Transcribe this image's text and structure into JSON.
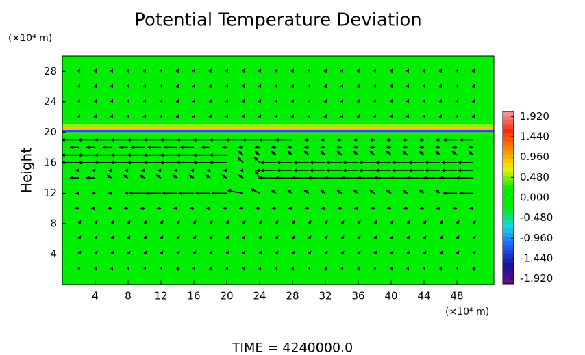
{
  "chart_data": {
    "type": "contour-quiver",
    "title": "Potential Temperature Deviation",
    "ylabel": "Height",
    "x_unit": "(×10⁴ m)",
    "y_unit": "(×10⁴ m)",
    "footer": "TIME = 4240000.0",
    "xlim": [
      0,
      52.5
    ],
    "ylim": [
      0,
      30
    ],
    "xticks": [
      4,
      8,
      12,
      16,
      20,
      24,
      28,
      32,
      36,
      40,
      44,
      48
    ],
    "yticks": [
      4,
      8,
      12,
      16,
      20,
      24,
      28
    ],
    "clim": [
      -2.04,
      2.04
    ],
    "colormap": [
      "#6a0d8a",
      "#1a0f9c",
      "#1f5cff",
      "#18d6e8",
      "#00ee00",
      "#00ee00",
      "#f4f000",
      "#ff8a00",
      "#ff2a10",
      "#f2a0a8"
    ],
    "cticks": [
      {
        "value": 1.92,
        "label": "1.920"
      },
      {
        "value": 1.44,
        "label": "1.440"
      },
      {
        "value": 0.96,
        "label": "0.960"
      },
      {
        "value": 0.48,
        "label": "0.480"
      },
      {
        "value": 0,
        "label": "0.000"
      },
      {
        "value": -0.48,
        "label": "-0.480"
      },
      {
        "value": -0.96,
        "label": "-0.960"
      },
      {
        "value": -1.44,
        "label": "-1.440"
      },
      {
        "value": -1.92,
        "label": "-1.920"
      }
    ],
    "field": {
      "y": [
        0,
        19.6,
        20.0,
        20.3,
        20.6,
        21.0,
        21.4
      ],
      "values": [
        0,
        0.3,
        -1.2,
        0.9,
        0.5,
        0.2,
        0
      ]
    },
    "vectors": {
      "x": [
        2,
        4,
        6,
        8,
        10,
        12,
        14,
        16,
        18,
        20,
        22,
        24,
        26,
        28,
        30,
        32,
        34,
        36,
        38,
        40,
        42,
        44,
        46,
        48,
        50
      ],
      "y": [
        2,
        4,
        6,
        8,
        10,
        12,
        14,
        15,
        16,
        17,
        18,
        19,
        22,
        24,
        26,
        28
      ],
      "u": [
        [
          0.1,
          0.1,
          0.1,
          0.1,
          0.1,
          0.1,
          0.1,
          0.1,
          0.1,
          0.1,
          0.1,
          0.1,
          0.1,
          0.1,
          0.1,
          0.1,
          0.1,
          0.1,
          0.1,
          0.1,
          0.1,
          0.1,
          0.1,
          0.1,
          0.1
        ],
        [
          0.2,
          0.2,
          0.2,
          0.2,
          0.2,
          0.2,
          0.2,
          0.2,
          0.2,
          0.2,
          0.2,
          0.2,
          0.2,
          0.2,
          0.2,
          0.2,
          0.2,
          0.2,
          0.2,
          0.2,
          0.2,
          0.2,
          0.2,
          0.2,
          0.2
        ],
        [
          0.2,
          0.2,
          0.2,
          0.2,
          0.2,
          0.2,
          0.2,
          0.2,
          0.2,
          0.2,
          0.2,
          0.2,
          0.2,
          0.2,
          0.2,
          0.2,
          0.2,
          0.2,
          0.2,
          0.2,
          0.2,
          0.2,
          0.2,
          0.2,
          0.2
        ],
        [
          0.2,
          0.2,
          0.2,
          0.2,
          0.2,
          0.2,
          0.2,
          0.2,
          0.2,
          0.2,
          0.2,
          0.2,
          0.2,
          0.2,
          0.2,
          0.2,
          0.2,
          0.2,
          0.2,
          0.2,
          0.2,
          0.2,
          0.2,
          0.2,
          0.2
        ],
        [
          -0.4,
          -0.4,
          -0.4,
          -0.4,
          -0.4,
          -0.4,
          -0.4,
          -0.4,
          -0.4,
          -0.4,
          -0.4,
          -0.4,
          -0.4,
          -0.4,
          -0.4,
          -0.4,
          -0.4,
          -0.4,
          -0.4,
          -0.4,
          -0.4,
          -0.4,
          -0.4,
          -0.4,
          -0.4
        ],
        [
          -0.3,
          -0.3,
          -0.3,
          -0.3,
          -1.8,
          -1.8,
          -1.8,
          -1.8,
          -1.8,
          -1.8,
          -1.8,
          -1,
          -0.5,
          -0.5,
          -0.5,
          -0.5,
          -0.5,
          -0.5,
          -0.5,
          -0.5,
          -0.5,
          -0.5,
          -0.5,
          -1.6,
          -1.6
        ],
        [
          -1,
          -1,
          -0.5,
          -0.5,
          -0.5,
          -0.5,
          -0.5,
          -0.5,
          -0.5,
          -0.5,
          -0.5,
          -0.5,
          -2,
          -2,
          -2,
          -2,
          -2,
          -2,
          -2,
          -2,
          -2,
          -2,
          -2,
          -2,
          -2
        ],
        [
          -0.3,
          -0.3,
          -0.3,
          -0.3,
          -0.3,
          -0.3,
          -0.3,
          -0.3,
          -0.3,
          -0.3,
          -0.3,
          -0.3,
          -1.8,
          -1.8,
          -1.8,
          -1.8,
          -1.8,
          -1.8,
          -1.8,
          -1.8,
          -1.8,
          -1.8,
          -1.8,
          -1.8,
          -1.8
        ],
        [
          -2,
          -2,
          -2,
          -2,
          -2,
          -2,
          -2,
          -2,
          -2,
          -2,
          -0.6,
          -0.6,
          -1.8,
          -1.8,
          -1.8,
          -1.8,
          -1.8,
          -1.8,
          -1.8,
          -1.8,
          -1.8,
          -1.8,
          -1.8,
          -1.8,
          -1.8
        ],
        [
          -2,
          -2,
          -2,
          -2,
          -2,
          -2,
          -2,
          -2,
          -2,
          -2,
          -0.5,
          -0.5,
          -0.5,
          -0.5,
          -0.5,
          -0.5,
          -0.5,
          -0.5,
          -0.5,
          -0.5,
          -0.5,
          -0.5,
          -0.5,
          -0.5,
          -0.5
        ],
        [
          -1,
          -1,
          -1,
          -1,
          -1.6,
          -1.6,
          -1.6,
          -1.6,
          -1,
          -0.5,
          -0.5,
          -0.5,
          -0.5,
          -0.5,
          -0.5,
          -0.5,
          -0.5,
          -0.5,
          -0.5,
          -0.5,
          -0.5,
          -0.5,
          -0.5,
          -0.5,
          -0.5
        ],
        [
          -2,
          -2,
          -2,
          -2,
          -2,
          -2,
          -2,
          -2,
          -2,
          -2,
          -2,
          -2,
          -2,
          -2,
          -0.5,
          -0.5,
          -0.5,
          -0.5,
          -0.5,
          -0.5,
          -0.5,
          -0.5,
          -0.5,
          -1.6,
          -1.6
        ],
        [
          0.1,
          0.1,
          0.1,
          0.1,
          0.1,
          0.1,
          0.1,
          0.1,
          0.1,
          0.1,
          0.1,
          0.1,
          0.1,
          0.1,
          0.1,
          0.1,
          0.1,
          0.1,
          0.1,
          0.1,
          0.1,
          0.1,
          0.1,
          0.1,
          0.1
        ],
        [
          0.1,
          0.1,
          0.1,
          0.1,
          0.1,
          0.1,
          0.1,
          0.1,
          0.1,
          0.1,
          0.1,
          0.1,
          0.1,
          0.1,
          0.1,
          0.1,
          0.1,
          0.1,
          0.1,
          0.1,
          0.1,
          0.1,
          0.1,
          0.1,
          0.1
        ],
        [
          0.1,
          0.1,
          0.1,
          0.1,
          0.1,
          0.1,
          0.1,
          0.1,
          0.1,
          0.1,
          0.1,
          0.1,
          0.1,
          0.1,
          0.1,
          0.1,
          0.1,
          0.1,
          0.1,
          0.1,
          0.1,
          0.1,
          0.1,
          0.1,
          0.1
        ],
        [
          0.1,
          0.1,
          0.1,
          0.1,
          0.1,
          0.1,
          0.1,
          0.1,
          0.1,
          0.1,
          0.1,
          0.1,
          0.1,
          0.1,
          0.1,
          0.1,
          0.1,
          0.1,
          0.1,
          0.1,
          0.1,
          0.1,
          0.1,
          0.1,
          0.1
        ]
      ],
      "v": [
        [
          0.2,
          0.2,
          0.2,
          0.2,
          0.2,
          0.2,
          0.2,
          0.2,
          0.2,
          0.2,
          0.2,
          0.2,
          0.2,
          0.2,
          0.2,
          0.2,
          0.2,
          0.2,
          0.2,
          0.2,
          0.2,
          0.2,
          0.2,
          0.2,
          0.2
        ],
        [
          0.3,
          0.3,
          0.3,
          0.3,
          0.3,
          0.3,
          0.3,
          0.3,
          0.3,
          0.3,
          0.3,
          0.3,
          0.3,
          0.3,
          0.3,
          0.3,
          0.3,
          0.3,
          0.3,
          0.3,
          0.3,
          0.3,
          0.3,
          0.3,
          0.3
        ],
        [
          0.3,
          0.3,
          0.3,
          0.3,
          0.3,
          0.3,
          0.3,
          0.3,
          0.3,
          0.3,
          0.3,
          0.3,
          0.3,
          0.3,
          0.3,
          0.3,
          0.3,
          0.3,
          0.3,
          0.3,
          0.3,
          0.3,
          0.3,
          0.3,
          0.3
        ],
        [
          0.3,
          0.3,
          0.3,
          0.3,
          0.3,
          0.3,
          0.3,
          0.3,
          0.3,
          0.3,
          0.3,
          0.3,
          0.3,
          0.3,
          0.3,
          0.3,
          0.3,
          0.3,
          0.3,
          0.3,
          0.3,
          0.3,
          0.3,
          0.3,
          0.3
        ],
        [
          0,
          0,
          0,
          0,
          0,
          0,
          0,
          0,
          0,
          0,
          0,
          0,
          0,
          0,
          0,
          0,
          0,
          0,
          0,
          0,
          0,
          0,
          0,
          0,
          0
        ],
        [
          0,
          0,
          0,
          0,
          0,
          0,
          0,
          0,
          0,
          0,
          0.3,
          0.5,
          0.3,
          0.3,
          0.3,
          0.3,
          0.3,
          0.3,
          0.3,
          0.3,
          0.3,
          0.3,
          0.3,
          0,
          0
        ],
        [
          0,
          0,
          0.3,
          0.3,
          0.3,
          0.3,
          0.3,
          0.3,
          0.3,
          0.3,
          0.3,
          0.8,
          0,
          0,
          0,
          0,
          0,
          0,
          0,
          0,
          0,
          0,
          0,
          0,
          0
        ],
        [
          0,
          0,
          0,
          0,
          0,
          0,
          0,
          0,
          0,
          0,
          0,
          0,
          0,
          0,
          0,
          0,
          0,
          0,
          0,
          0,
          0,
          0,
          0,
          0,
          0
        ],
        [
          0,
          0,
          0,
          0,
          0,
          0,
          0,
          0,
          0,
          0,
          0.6,
          0.6,
          0,
          0,
          0,
          0,
          0,
          0,
          0,
          0,
          0,
          0,
          0,
          0,
          0
        ],
        [
          0,
          0,
          0,
          0,
          0,
          0,
          0,
          0,
          0,
          0,
          0.4,
          0.4,
          0.4,
          0.4,
          0.4,
          0.4,
          0.4,
          0.4,
          0.4,
          0.4,
          0.4,
          0.4,
          0.4,
          0.4,
          0.4
        ],
        [
          0,
          0,
          0,
          0,
          0,
          0,
          0,
          0,
          0,
          0,
          0,
          0,
          0,
          0,
          0,
          0,
          0,
          0,
          0,
          0,
          0,
          0,
          0,
          0,
          0
        ],
        [
          0,
          0,
          0,
          0,
          0,
          0,
          0,
          0,
          0,
          0,
          0,
          0,
          0,
          0,
          0,
          0,
          0,
          0,
          0,
          0,
          0,
          0,
          0,
          0,
          0
        ],
        [
          0.2,
          0.2,
          0.2,
          0.2,
          0.2,
          0.2,
          0.2,
          0.2,
          0.2,
          0.2,
          0.2,
          0.2,
          0.2,
          0.2,
          0.2,
          0.2,
          0.2,
          0.2,
          0.2,
          0.2,
          0.2,
          0.2,
          0.2,
          0.2,
          0.2
        ],
        [
          0.2,
          0.2,
          0.2,
          0.2,
          0.2,
          0.2,
          0.2,
          0.2,
          0.2,
          0.2,
          0.2,
          0.2,
          0.2,
          0.2,
          0.2,
          0.2,
          0.2,
          0.2,
          0.2,
          0.2,
          0.2,
          0.2,
          0.2,
          0.2,
          0.2
        ],
        [
          0.2,
          0.2,
          0.2,
          0.2,
          0.2,
          0.2,
          0.2,
          0.2,
          0.2,
          0.2,
          0.2,
          0.2,
          0.2,
          0.2,
          0.2,
          0.2,
          0.2,
          0.2,
          0.2,
          0.2,
          0.2,
          0.2,
          0.2,
          0.2,
          0.2
        ],
        [
          0.2,
          0.2,
          0.2,
          0.2,
          0.2,
          0.2,
          0.2,
          0.2,
          0.2,
          0.2,
          0.2,
          0.2,
          0.2,
          0.2,
          0.2,
          0.2,
          0.2,
          0.2,
          0.2,
          0.2,
          0.2,
          0.2,
          0.2,
          0.2,
          0.2
        ]
      ]
    }
  }
}
